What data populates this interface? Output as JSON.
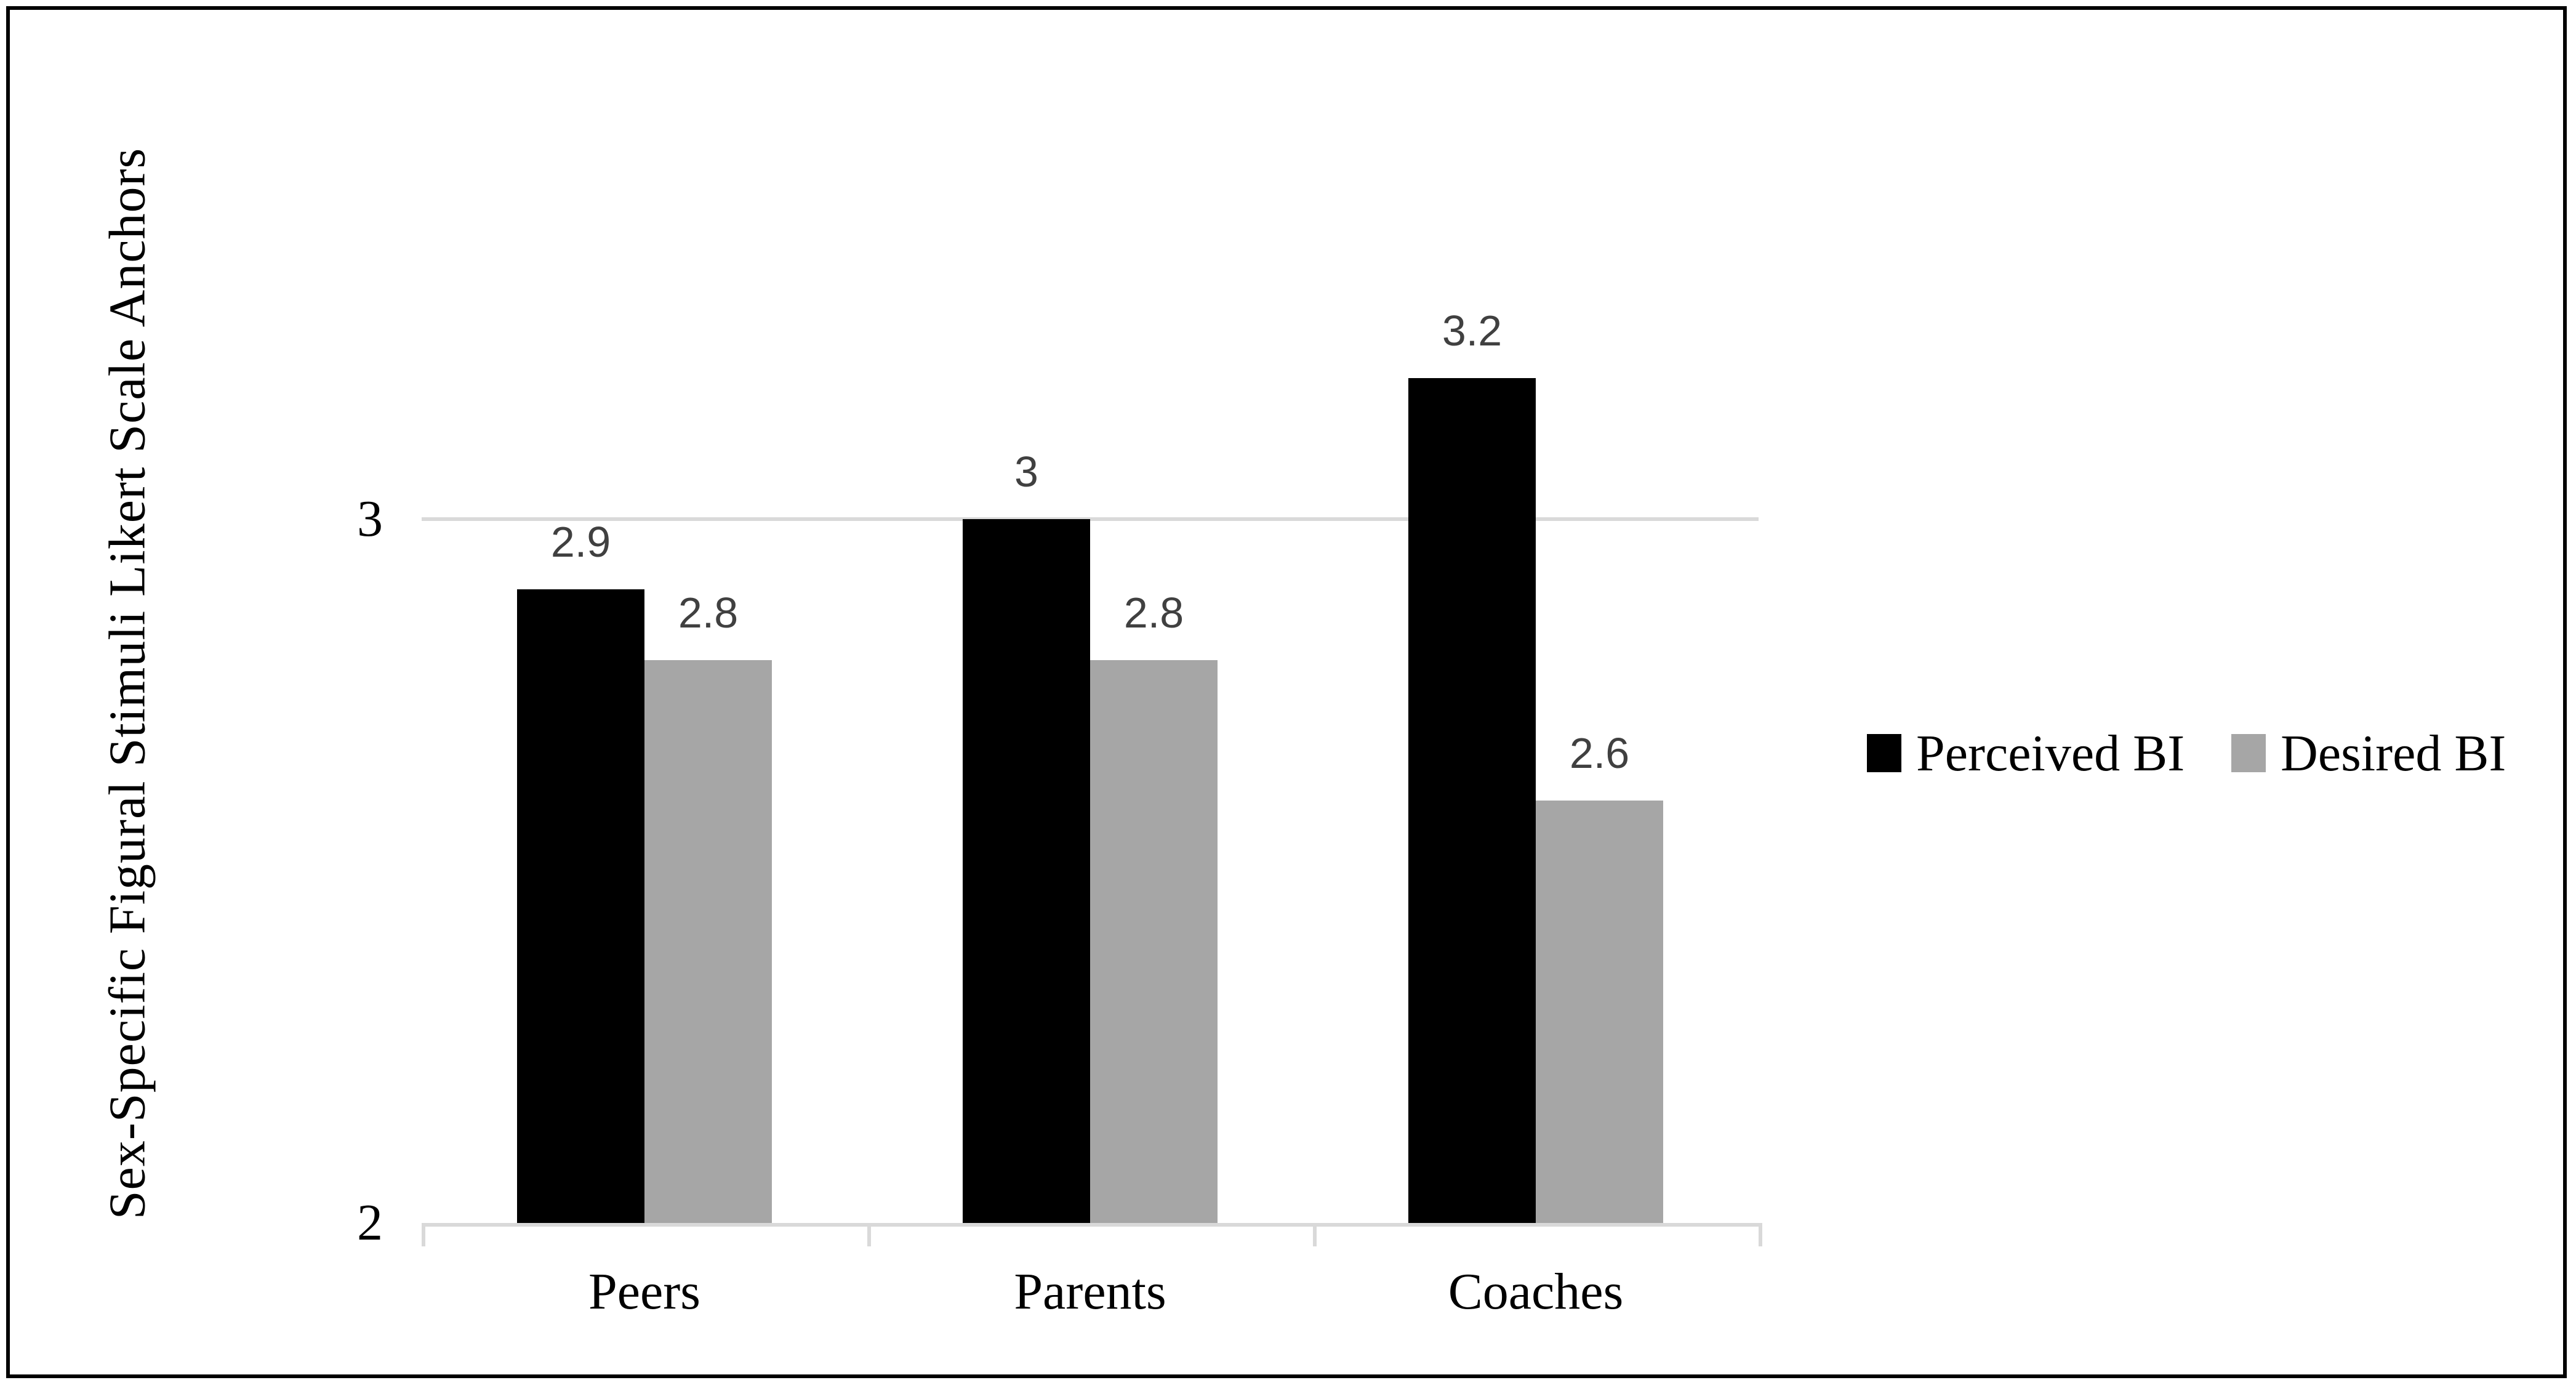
{
  "chart_data": {
    "type": "bar",
    "title": "",
    "xlabel": "",
    "ylabel": "Sex-Specific Figural Stimuli Likert Scale Anchors",
    "categories": [
      "Peers",
      "Parents",
      "Coaches"
    ],
    "series": [
      {
        "name": "Perceived BI",
        "color": "#000000",
        "values": [
          2.9,
          3,
          3.2
        ],
        "labels": [
          "2.9",
          "3",
          "3.2"
        ]
      },
      {
        "name": "Desired BI",
        "color": "#a6a6a6",
        "values": [
          2.8,
          2.8,
          2.6
        ],
        "labels": [
          "2.8",
          "2.8",
          "2.6"
        ]
      }
    ],
    "y_ticks": [
      {
        "value": 2,
        "label": "2"
      },
      {
        "value": 3,
        "label": "3"
      }
    ],
    "ylim": [
      2,
      3.4
    ],
    "grid": "horizontal",
    "gridline_values": [
      3
    ],
    "legend_position": "right",
    "colors": {
      "axis_line": "#d9d9d9",
      "gridline": "#d9d9d9",
      "data_label": "#404040",
      "tick_label": "#000000",
      "category_label": "#000000",
      "border": "#000000",
      "background": "#ffffff"
    }
  }
}
